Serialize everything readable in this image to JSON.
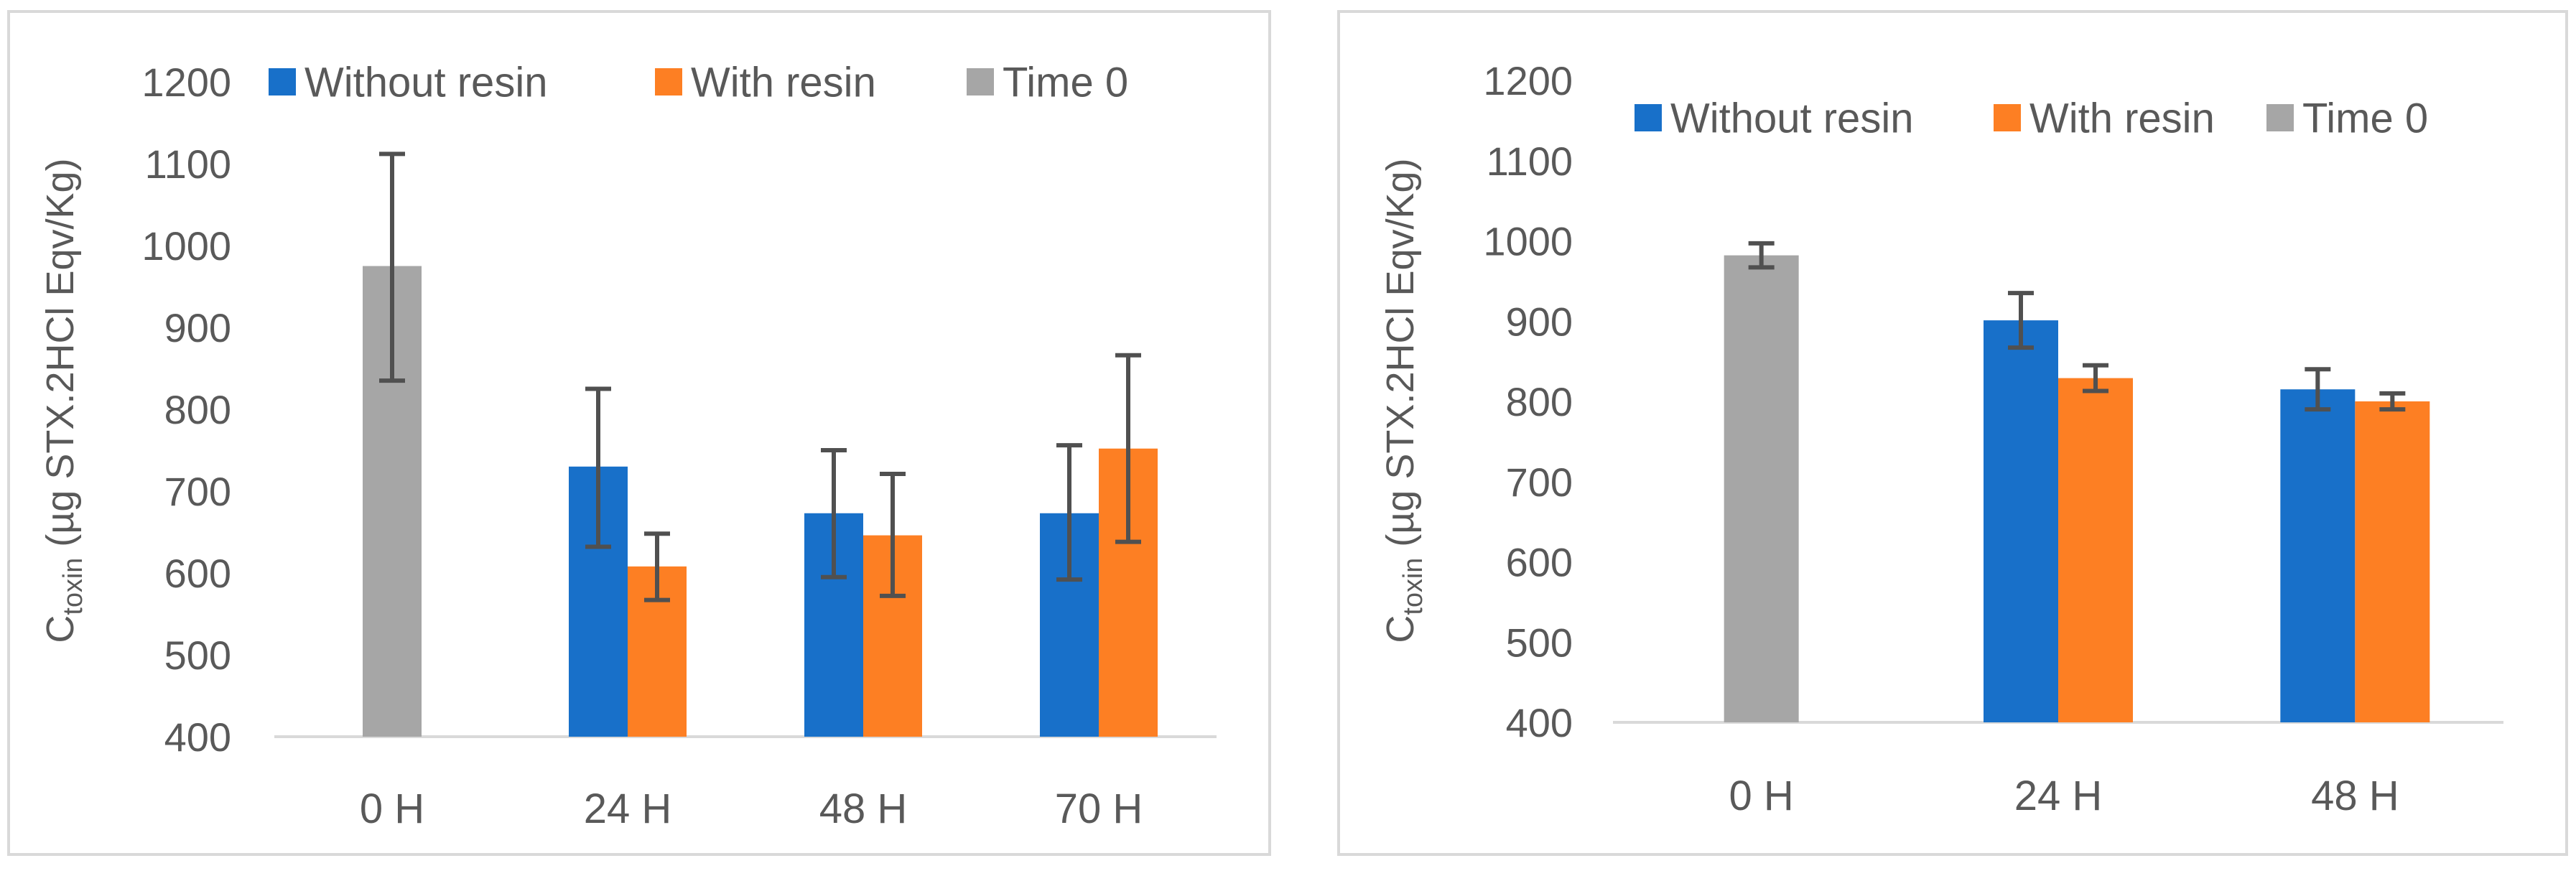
{
  "charts": [
    {
      "type": "bar",
      "ylabel_main": "C",
      "ylabel_sub": "toxin",
      "ylabel_rest": " (µg STX.2HCl Eqv/Kg)",
      "ylim": [
        400,
        1200
      ],
      "yticks": [
        400,
        500,
        600,
        700,
        800,
        900,
        1000,
        1100,
        1200
      ],
      "categories": [
        "0 H",
        "24 H",
        "48 H",
        "70 H"
      ],
      "legend": [
        "Without resin",
        "With resin",
        "Time 0"
      ],
      "series": [
        {
          "name": "Time 0",
          "color": "#a6a6a6",
          "points": [
            {
              "cat": "0 H",
              "value": 975,
              "err_low": 835,
              "err_high": 1112
            }
          ]
        },
        {
          "name": "Without resin",
          "color": "#1870c9",
          "points": [
            {
              "cat": "24 H",
              "value": 730,
              "err_low": 632,
              "err_high": 825
            },
            {
              "cat": "48 H",
              "value": 673,
              "err_low": 595,
              "err_high": 750
            },
            {
              "cat": "70 H",
              "value": 673,
              "err_low": 592,
              "err_high": 756
            }
          ]
        },
        {
          "name": "With resin",
          "color": "#fd7f23",
          "points": [
            {
              "cat": "24 H",
              "value": 608,
              "err_low": 567,
              "err_high": 648
            },
            {
              "cat": "48 H",
              "value": 646,
              "err_low": 572,
              "err_high": 721
            },
            {
              "cat": "70 H",
              "value": 752,
              "err_low": 638,
              "err_high": 866
            }
          ]
        }
      ]
    },
    {
      "type": "bar",
      "ylabel_main": "C",
      "ylabel_sub": "toxin",
      "ylabel_rest": " (µg STX.2HCl Eqv/Kg)",
      "ylim": [
        400,
        1200
      ],
      "yticks": [
        400,
        500,
        600,
        700,
        800,
        900,
        1000,
        1100,
        1200
      ],
      "categories": [
        "0 H",
        "24 H",
        "48 H"
      ],
      "legend": [
        "Without resin",
        "With resin",
        "Time 0"
      ],
      "series": [
        {
          "name": "Time 0",
          "color": "#a6a6a6",
          "points": [
            {
              "cat": "0 H",
              "value": 982,
              "err_low": 967,
              "err_high": 997
            }
          ]
        },
        {
          "name": "Without resin",
          "color": "#1870c9",
          "points": [
            {
              "cat": "24 H",
              "value": 901,
              "err_low": 867,
              "err_high": 935
            },
            {
              "cat": "48 H",
              "value": 815,
              "err_low": 790,
              "err_high": 840
            }
          ]
        },
        {
          "name": "With resin",
          "color": "#fd7f23",
          "points": [
            {
              "cat": "24 H",
              "value": 829,
              "err_low": 813,
              "err_high": 845
            },
            {
              "cat": "48 H",
              "value": 800,
              "err_low": 790,
              "err_high": 810
            }
          ]
        }
      ]
    }
  ]
}
